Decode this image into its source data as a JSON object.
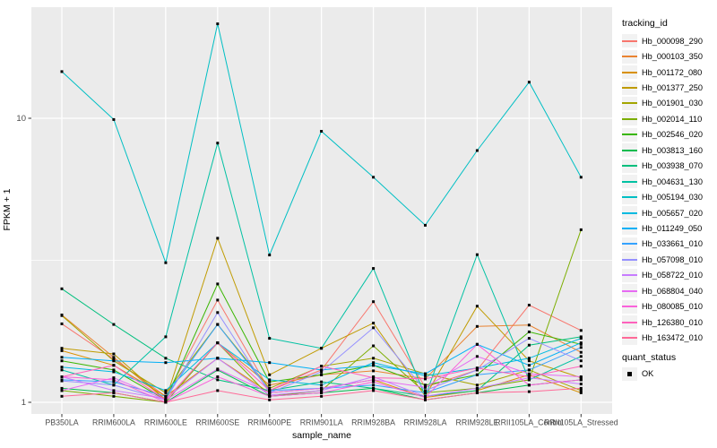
{
  "figure": {
    "y_axis_title": "FPKM + 1",
    "x_axis_title": "sample_name",
    "legend": {
      "tracking_title": "tracking_id",
      "quant_title": "quant_status",
      "quant_item_label": "OK"
    },
    "colors": {
      "panel_bg": "#EBEBEB",
      "gridline": "#FFFFFF",
      "tick_label": "#4D4D4D",
      "point": "#000000",
      "legend_key_bg": "#F2F2F2"
    }
  },
  "chart_data": {
    "type": "line",
    "title": "",
    "xlabel": "sample_name",
    "ylabel": "FPKM + 1",
    "y_scale": "log10",
    "y_ticks": [
      1,
      10
    ],
    "y_minor_ticks": [
      3.162
    ],
    "ylim": [
      0.91,
      24.6
    ],
    "grid": true,
    "legend_position": "right",
    "point_shape": "filled-black-square",
    "categories": [
      "PB350LA",
      "RRIM600LA",
      "RRIM600LE",
      "RRIM600SE",
      "RRIM600PE",
      "RRIM901LA",
      "RRIM928BA",
      "RRIM928LA",
      "RRIM928LE",
      "RRII105LA_Control",
      "RRII105LA_Stressed"
    ],
    "series": [
      {
        "name": "Hb_000098_290",
        "color": "#F8766D",
        "values": [
          1.89,
          1.42,
          1.05,
          2.29,
          1.1,
          1.3,
          2.26,
          1.13,
          1.3,
          2.2,
          1.79
        ]
      },
      {
        "name": "Hb_000103_350",
        "color": "#EA8331",
        "values": [
          2.03,
          1.44,
          1.02,
          1.62,
          1.15,
          1.25,
          1.29,
          1.21,
          1.85,
          1.87,
          1.5
        ]
      },
      {
        "name": "Hb_001172_080",
        "color": "#D89000",
        "values": [
          1.52,
          1.35,
          1.05,
          1.43,
          1.08,
          1.12,
          1.2,
          1.04,
          1.1,
          1.25,
          1.08
        ]
      },
      {
        "name": "Hb_001377_250",
        "color": "#C09B00",
        "values": [
          1.55,
          1.48,
          1.02,
          3.78,
          1.25,
          1.55,
          1.9,
          1.05,
          2.18,
          1.4,
          1.22
        ]
      },
      {
        "name": "Hb_001901_030",
        "color": "#A3A500",
        "values": [
          2.02,
          1.4,
          1.08,
          1.88,
          1.12,
          1.34,
          1.43,
          1.26,
          1.15,
          1.3,
          1.1
        ]
      },
      {
        "name": "Hb_002014_110",
        "color": "#7CAE00",
        "values": [
          1.1,
          1.05,
          1.0,
          1.62,
          1.05,
          1.1,
          1.58,
          1.08,
          1.12,
          1.2,
          4.05
        ]
      },
      {
        "name": "Hb_002546_020",
        "color": "#39B600",
        "values": [
          1.4,
          1.3,
          1.02,
          2.61,
          1.18,
          1.25,
          1.35,
          1.15,
          1.25,
          1.77,
          1.6
        ]
      },
      {
        "name": "Hb_003813_160",
        "color": "#00BB4E",
        "values": [
          1.12,
          1.08,
          1.0,
          1.3,
          1.05,
          1.08,
          1.12,
          1.02,
          1.08,
          1.15,
          1.2
        ]
      },
      {
        "name": "Hb_003938_070",
        "color": "#00BF7D",
        "values": [
          2.51,
          1.88,
          1.43,
          1.2,
          1.1,
          1.18,
          1.12,
          1.05,
          1.1,
          1.59,
          1.7
        ]
      },
      {
        "name": "Hb_004631_130",
        "color": "#00C1A3",
        "values": [
          1.3,
          1.15,
          1.7,
          8.18,
          1.68,
          1.55,
          2.96,
          1.05,
          3.31,
          1.2,
          1.45
        ]
      },
      {
        "name": "Hb_005194_030",
        "color": "#00BFC4",
        "values": [
          14.6,
          9.9,
          3.1,
          21.5,
          3.3,
          9.0,
          6.2,
          4.2,
          7.7,
          13.4,
          6.2
        ]
      },
      {
        "name": "Hb_005657_020",
        "color": "#00BAE0",
        "values": [
          1.33,
          1.28,
          1.1,
          1.62,
          1.2,
          1.15,
          1.38,
          1.24,
          1.32,
          1.43,
          1.68
        ]
      },
      {
        "name": "Hb_011249_050",
        "color": "#00B0F6",
        "values": [
          1.44,
          1.4,
          1.38,
          1.43,
          1.38,
          1.3,
          1.35,
          1.26,
          1.6,
          1.35,
          1.62
        ]
      },
      {
        "name": "Hb_033661_010",
        "color": "#35A2FF",
        "values": [
          1.2,
          1.18,
          1.05,
          1.88,
          1.1,
          1.12,
          1.15,
          1.08,
          1.25,
          1.3,
          1.56
        ]
      },
      {
        "name": "Hb_057098_010",
        "color": "#9590FF",
        "values": [
          1.19,
          1.15,
          1.02,
          2.07,
          1.08,
          1.28,
          1.83,
          1.1,
          1.3,
          1.68,
          1.4
        ]
      },
      {
        "name": "Hb_058722_010",
        "color": "#C77CFF",
        "values": [
          1.23,
          1.1,
          1.03,
          1.43,
          1.06,
          1.1,
          1.23,
          1.05,
          1.12,
          1.22,
          1.16
        ]
      },
      {
        "name": "Hb_068804_040",
        "color": "#E76BF3",
        "values": [
          1.1,
          1.22,
          1.02,
          1.31,
          1.08,
          1.12,
          1.2,
          1.13,
          1.45,
          1.26,
          1.23
        ]
      },
      {
        "name": "Hb_080085_010",
        "color": "#FA62DB",
        "values": [
          1.23,
          1.2,
          1.0,
          1.23,
          1.05,
          1.08,
          1.18,
          1.04,
          1.6,
          1.15,
          1.2
        ]
      },
      {
        "name": "Hb_126380_010",
        "color": "#FF62BC",
        "values": [
          1.23,
          1.35,
          1.02,
          1.62,
          1.1,
          1.34,
          1.22,
          1.21,
          1.32,
          1.23,
          1.34
        ]
      },
      {
        "name": "Hb_163472_010",
        "color": "#FF6A98",
        "values": [
          1.05,
          1.08,
          1.0,
          1.1,
          1.02,
          1.05,
          1.1,
          1.02,
          1.08,
          1.09,
          1.12
        ]
      }
    ]
  }
}
